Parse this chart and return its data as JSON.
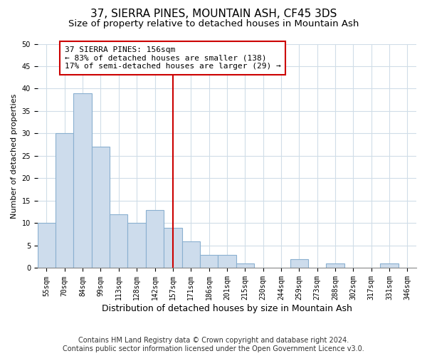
{
  "title": "37, SIERRA PINES, MOUNTAIN ASH, CF45 3DS",
  "subtitle": "Size of property relative to detached houses in Mountain Ash",
  "xlabel": "Distribution of detached houses by size in Mountain Ash",
  "ylabel": "Number of detached properties",
  "bin_labels": [
    "55sqm",
    "70sqm",
    "84sqm",
    "99sqm",
    "113sqm",
    "128sqm",
    "142sqm",
    "157sqm",
    "171sqm",
    "186sqm",
    "201sqm",
    "215sqm",
    "230sqm",
    "244sqm",
    "259sqm",
    "273sqm",
    "288sqm",
    "302sqm",
    "317sqm",
    "331sqm",
    "346sqm"
  ],
  "bar_values": [
    10,
    30,
    39,
    27,
    12,
    10,
    13,
    9,
    6,
    3,
    3,
    1,
    0,
    0,
    2,
    0,
    1,
    0,
    0,
    1,
    0
  ],
  "bar_color": "#cddcec",
  "bar_edge_color": "#8ab0d0",
  "vline_x_index": 7,
  "vline_color": "#cc0000",
  "annotation_title": "37 SIERRA PINES: 156sqm",
  "annotation_line1": "← 83% of detached houses are smaller (138)",
  "annotation_line2": "17% of semi-detached houses are larger (29) →",
  "annotation_box_color": "#ffffff",
  "annotation_box_edge_color": "#cc0000",
  "ylim": [
    0,
    50
  ],
  "yticks": [
    0,
    5,
    10,
    15,
    20,
    25,
    30,
    35,
    40,
    45,
    50
  ],
  "footer_line1": "Contains HM Land Registry data © Crown copyright and database right 2024.",
  "footer_line2": "Contains public sector information licensed under the Open Government Licence v3.0.",
  "background_color": "#ffffff",
  "plot_background_color": "#ffffff",
  "grid_color": "#d0dde8",
  "title_fontsize": 11,
  "subtitle_fontsize": 9.5,
  "xlabel_fontsize": 9,
  "ylabel_fontsize": 8,
  "tick_fontsize": 7,
  "annotation_fontsize": 8,
  "footer_fontsize": 7
}
